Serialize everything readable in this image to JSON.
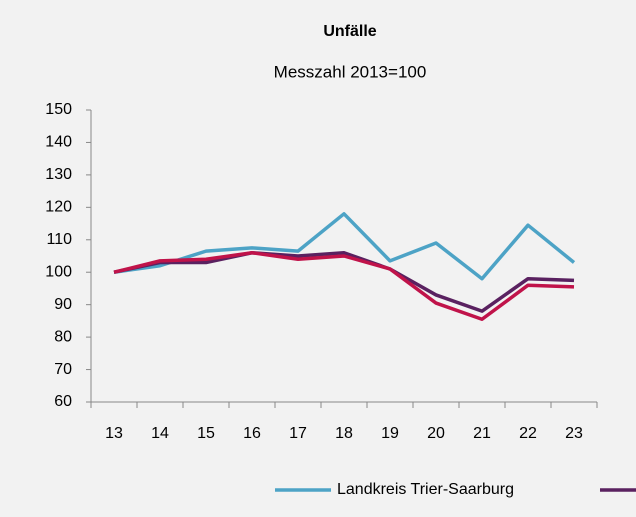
{
  "chart_data": {
    "type": "line",
    "title": "Unfälle",
    "subtitle": "Messzahl 2013=100",
    "categories": [
      "13",
      "14",
      "15",
      "16",
      "17",
      "18",
      "19",
      "20",
      "21",
      "22",
      "23"
    ],
    "series": [
      {
        "name": "Landkreis Trier-Saarburg",
        "color": "#4da3c6",
        "values": [
          100,
          102,
          106.5,
          107.5,
          106.5,
          118,
          103.5,
          109,
          98,
          114.5,
          103
        ]
      },
      {
        "color": "#5a2160",
        "values": [
          100,
          103,
          103,
          106,
          105,
          106,
          101,
          93,
          88,
          98,
          97.5
        ]
      },
      {
        "color": "#c0134a",
        "values": [
          100,
          103.5,
          104,
          106,
          104,
          105,
          101,
          90.5,
          85.5,
          96,
          95.5
        ]
      }
    ],
    "ylim": [
      60,
      150
    ],
    "yticks": [
      60,
      70,
      80,
      90,
      100,
      110,
      120,
      130,
      140,
      150
    ],
    "grid": false
  }
}
